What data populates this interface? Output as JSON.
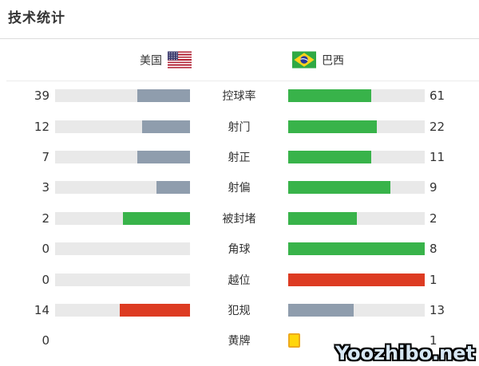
{
  "title": "技术统计",
  "teams": {
    "left": {
      "name": "美国",
      "flag": "usa-flag"
    },
    "right": {
      "name": "巴西",
      "flag": "brazil-flag"
    }
  },
  "rows": [
    {
      "label": "控球率",
      "left": {
        "value": "39",
        "pct": 39.0,
        "color": "#8f9dad"
      },
      "right": {
        "value": "61",
        "pct": 61.0,
        "color": "#38b34a"
      }
    },
    {
      "label": "射门",
      "left": {
        "value": "12",
        "pct": 35.3,
        "color": "#8f9dad"
      },
      "right": {
        "value": "22",
        "pct": 64.7,
        "color": "#38b34a"
      }
    },
    {
      "label": "射正",
      "left": {
        "value": "7",
        "pct": 38.9,
        "color": "#8f9dad"
      },
      "right": {
        "value": "11",
        "pct": 61.1,
        "color": "#38b34a"
      }
    },
    {
      "label": "射偏",
      "left": {
        "value": "3",
        "pct": 25.0,
        "color": "#8f9dad"
      },
      "right": {
        "value": "9",
        "pct": 75.0,
        "color": "#38b34a"
      }
    },
    {
      "label": "被封堵",
      "left": {
        "value": "2",
        "pct": 50.0,
        "color": "#38b34a"
      },
      "right": {
        "value": "2",
        "pct": 50.0,
        "color": "#38b34a"
      }
    },
    {
      "label": "角球",
      "left": {
        "value": "0",
        "pct": 0,
        "color": "#8f9dad"
      },
      "right": {
        "value": "8",
        "pct": 100,
        "color": "#38b34a"
      }
    },
    {
      "label": "越位",
      "left": {
        "value": "0",
        "pct": 0,
        "color": "#8f9dad"
      },
      "right": {
        "value": "1",
        "pct": 100,
        "color": "#dd3b22"
      }
    },
    {
      "label": "犯规",
      "left": {
        "value": "14",
        "pct": 51.9,
        "color": "#dd3b22"
      },
      "right": {
        "value": "13",
        "pct": 48.1,
        "color": "#8f9dad"
      }
    },
    {
      "label": "黄牌",
      "left": {
        "value": "0",
        "bar": false
      },
      "right": {
        "value": "1",
        "bar": false,
        "cards": 1
      }
    }
  ],
  "watermark": {
    "text": "Yoozhibo.net"
  },
  "colors": {
    "bar_track": "#e9e9e9",
    "bar_gray_blue": "#8f9dad",
    "bar_green": "#38b34a",
    "bar_red": "#dd3b22",
    "card_yellow": "#ffd60a"
  },
  "chart_data": {
    "type": "bar",
    "title": "技术统计",
    "orientation": "horizontal-mirrored",
    "categories": [
      "控球率",
      "射门",
      "射正",
      "射偏",
      "被封堵",
      "角球",
      "越位",
      "犯规",
      "黄牌"
    ],
    "series": [
      {
        "name": "美国",
        "values": [
          39,
          12,
          7,
          3,
          2,
          0,
          0,
          14,
          0
        ]
      },
      {
        "name": "巴西",
        "values": [
          61,
          22,
          11,
          9,
          2,
          8,
          1,
          13,
          1
        ]
      }
    ],
    "fill_rule": "bar fill fraction = value / (value_left + value_right), anchored to center",
    "legend_position": "top",
    "grid": false
  }
}
